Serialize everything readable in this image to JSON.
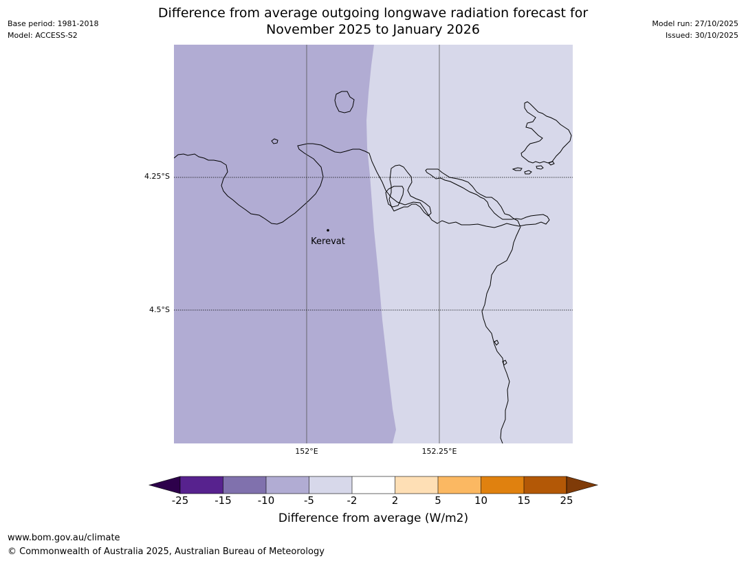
{
  "header": {
    "title_line1": "Difference from average outgoing longwave radiation forecast for",
    "title_line2": "November 2025 to January 2026",
    "base_period": "Base period: 1981-2018",
    "model": "Model: ACCESS-S2",
    "model_run": "Model run: 27/10/2025",
    "issued": "Issued: 30/10/2025"
  },
  "map": {
    "latitude_labels": [
      "4.25°S",
      "4.5°S"
    ],
    "longitude_labels": [
      "152°E",
      "152.25°E"
    ],
    "place_label": "Kerevat",
    "fill_colors": {
      "west": "#b1acd3",
      "east": "#d7d8ea"
    }
  },
  "colorbar": {
    "label": "Difference from average (W/m2)",
    "ticks": [
      "-25",
      "-15",
      "-10",
      "-5",
      "-2",
      "2",
      "5",
      "10",
      "15",
      "25"
    ],
    "colors": [
      "#57228e",
      "#8071ad",
      "#b1acd3",
      "#d7d8ea",
      "#ffffff",
      "#fedfb5",
      "#fbb862",
      "#e0810f",
      "#b35806"
    ],
    "extend_low_color": "#2d004b",
    "extend_high_color": "#7f3b08"
  },
  "footer": {
    "url": "www.bom.gov.au/climate",
    "copyright": "© Commonwealth of Australia 2025, Australian Bureau of Meteorology"
  }
}
